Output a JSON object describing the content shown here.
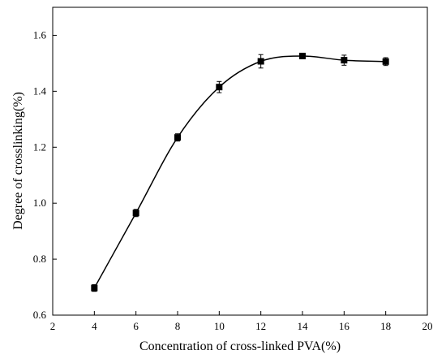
{
  "chart_data": {
    "type": "scatter",
    "title": "",
    "xlabel": "Concentration of cross-linked PVA(%)",
    "ylabel": "Degree of crosslinking(%)",
    "xlim": [
      2,
      20
    ],
    "ylim": [
      0.6,
      1.7
    ],
    "xticks": [
      2,
      4,
      6,
      8,
      10,
      12,
      14,
      16,
      18,
      20
    ],
    "yticks": [
      0.6,
      0.8,
      1.0,
      1.2,
      1.4,
      1.6
    ],
    "xtick_labels": [
      "2",
      "4",
      "6",
      "8",
      "10",
      "12",
      "14",
      "16",
      "18",
      "20"
    ],
    "ytick_labels": [
      "0.6",
      "0.8",
      "1.0",
      "1.2",
      "1.4",
      "1.6"
    ],
    "grid": false,
    "legend": false,
    "marker": "square",
    "fitted_curve": "smooth",
    "series": [
      {
        "x": [
          4,
          6,
          8,
          10,
          12,
          14,
          16,
          18
        ],
        "y": [
          0.697,
          0.965,
          1.235,
          1.415,
          1.507,
          1.526,
          1.511,
          1.506
        ],
        "error": [
          0.012,
          0.013,
          0.013,
          0.02,
          0.024,
          0.008,
          0.018,
          0.014
        ]
      }
    ],
    "colors": {
      "marker": "#000000",
      "line": "#000000",
      "axis": "#000000"
    }
  }
}
